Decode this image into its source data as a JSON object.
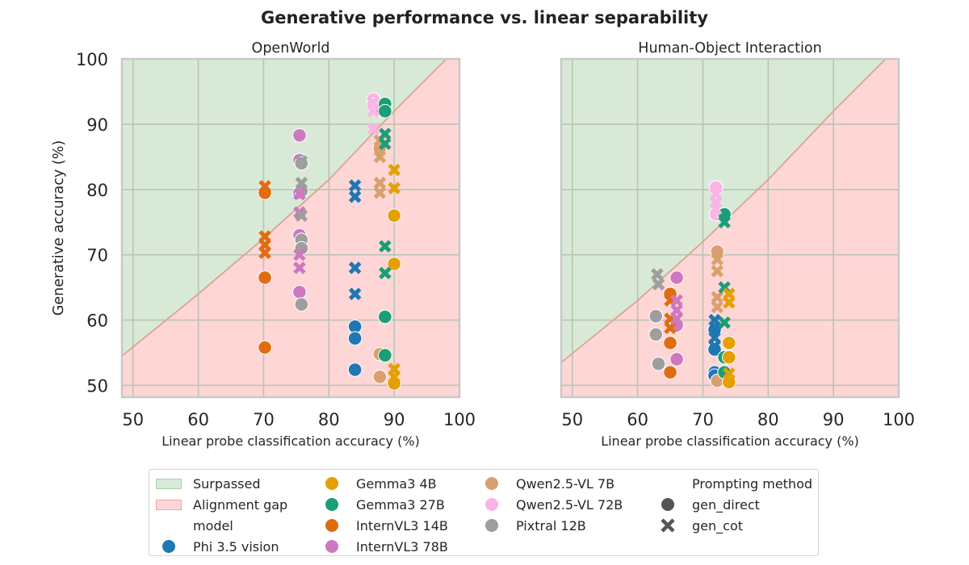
{
  "figure": {
    "title": "Generative performance vs. linear separability"
  },
  "chart_data": [
    {
      "type": "scatter",
      "title": "OpenWorld",
      "xlabel": "Linear probe classification accuracy (%)",
      "ylabel": "Generative accuracy (%)",
      "xlim": [
        48.3,
        100
      ],
      "ylim": [
        48.2,
        100
      ],
      "xticks": [
        50,
        60,
        70,
        80,
        90,
        100
      ],
      "yticks": [
        50,
        60,
        70,
        80,
        90,
        100
      ],
      "grid": true,
      "boundary": [
        [
          48.3,
          54.5
        ],
        [
          60,
          64
        ],
        [
          70,
          72.5
        ],
        [
          80,
          81.5
        ],
        [
          90,
          92
        ],
        [
          95,
          97
        ],
        [
          98,
          100
        ],
        [
          100,
          100.5
        ]
      ],
      "points": [
        {
          "model": "InternVL3 14B",
          "method": "gen_direct",
          "x": 70.2,
          "y": 79.5
        },
        {
          "model": "InternVL3 14B",
          "method": "gen_direct",
          "x": 70.2,
          "y": 66.5
        },
        {
          "model": "InternVL3 14B",
          "method": "gen_direct",
          "x": 70.2,
          "y": 55.8
        },
        {
          "model": "InternVL3 14B",
          "method": "gen_cot",
          "x": 70.2,
          "y": 80.5
        },
        {
          "model": "InternVL3 14B",
          "method": "gen_cot",
          "x": 70.2,
          "y": 72.8
        },
        {
          "model": "InternVL3 14B",
          "method": "gen_cot",
          "x": 70.2,
          "y": 71.5
        },
        {
          "model": "InternVL3 14B",
          "method": "gen_cot",
          "x": 70.2,
          "y": 70.3
        },
        {
          "model": "InternVL3 78B",
          "method": "gen_direct",
          "x": 75.5,
          "y": 88.3
        },
        {
          "model": "InternVL3 78B",
          "method": "gen_direct",
          "x": 75.5,
          "y": 84.5
        },
        {
          "model": "InternVL3 78B",
          "method": "gen_direct",
          "x": 75.5,
          "y": 79.5
        },
        {
          "model": "InternVL3 78B",
          "method": "gen_direct",
          "x": 75.5,
          "y": 73.0
        },
        {
          "model": "InternVL3 78B",
          "method": "gen_direct",
          "x": 75.5,
          "y": 64.3
        },
        {
          "model": "InternVL3 78B",
          "method": "gen_cot",
          "x": 75.5,
          "y": 79.3
        },
        {
          "model": "InternVL3 78B",
          "method": "gen_cot",
          "x": 75.5,
          "y": 76.5
        },
        {
          "model": "InternVL3 78B",
          "method": "gen_cot",
          "x": 75.5,
          "y": 70.0
        },
        {
          "model": "InternVL3 78B",
          "method": "gen_cot",
          "x": 75.5,
          "y": 68.0
        },
        {
          "model": "Pixtral 12B",
          "method": "gen_direct",
          "x": 75.8,
          "y": 84.0
        },
        {
          "model": "Pixtral 12B",
          "method": "gen_direct",
          "x": 75.8,
          "y": 79.8
        },
        {
          "model": "Pixtral 12B",
          "method": "gen_direct",
          "x": 75.8,
          "y": 72.3
        },
        {
          "model": "Pixtral 12B",
          "method": "gen_direct",
          "x": 75.8,
          "y": 71.0
        },
        {
          "model": "Pixtral 12B",
          "method": "gen_direct",
          "x": 75.8,
          "y": 62.4
        },
        {
          "model": "Pixtral 12B",
          "method": "gen_cot",
          "x": 75.8,
          "y": 84.3
        },
        {
          "model": "Pixtral 12B",
          "method": "gen_cot",
          "x": 75.8,
          "y": 81.0
        },
        {
          "model": "Pixtral 12B",
          "method": "gen_cot",
          "x": 75.8,
          "y": 76.0
        },
        {
          "model": "Phi 3.5 vision",
          "method": "gen_direct",
          "x": 84.0,
          "y": 59.0
        },
        {
          "model": "Phi 3.5 vision",
          "method": "gen_direct",
          "x": 84.0,
          "y": 57.2
        },
        {
          "model": "Phi 3.5 vision",
          "method": "gen_direct",
          "x": 84.0,
          "y": 52.4
        },
        {
          "model": "Phi 3.5 vision",
          "method": "gen_cot",
          "x": 84.0,
          "y": 80.6
        },
        {
          "model": "Phi 3.5 vision",
          "method": "gen_cot",
          "x": 84.0,
          "y": 78.9
        },
        {
          "model": "Phi 3.5 vision",
          "method": "gen_cot",
          "x": 84.0,
          "y": 68.0
        },
        {
          "model": "Phi 3.5 vision",
          "method": "gen_cot",
          "x": 84.0,
          "y": 64.0
        },
        {
          "model": "Qwen2.5-VL 72B",
          "method": "gen_direct",
          "x": 86.8,
          "y": 93.8
        },
        {
          "model": "Qwen2.5-VL 72B",
          "method": "gen_direct",
          "x": 86.8,
          "y": 93.0
        },
        {
          "model": "Qwen2.5-VL 72B",
          "method": "gen_cot",
          "x": 86.8,
          "y": 93.3
        },
        {
          "model": "Qwen2.5-VL 72B",
          "method": "gen_cot",
          "x": 86.8,
          "y": 92.0
        },
        {
          "model": "Qwen2.5-VL 72B",
          "method": "gen_cot",
          "x": 86.8,
          "y": 89.3
        },
        {
          "model": "Qwen2.5-VL 7B",
          "method": "gen_direct",
          "x": 87.8,
          "y": 92.3
        },
        {
          "model": "Qwen2.5-VL 7B",
          "method": "gen_direct",
          "x": 87.8,
          "y": 86.3
        },
        {
          "model": "Qwen2.5-VL 7B",
          "method": "gen_direct",
          "x": 87.8,
          "y": 54.8
        },
        {
          "model": "Qwen2.5-VL 7B",
          "method": "gen_direct",
          "x": 87.8,
          "y": 51.3
        },
        {
          "model": "Qwen2.5-VL 7B",
          "method": "gen_cot",
          "x": 87.8,
          "y": 87.5
        },
        {
          "model": "Qwen2.5-VL 7B",
          "method": "gen_cot",
          "x": 87.8,
          "y": 85.0
        },
        {
          "model": "Qwen2.5-VL 7B",
          "method": "gen_cot",
          "x": 87.8,
          "y": 81.0
        },
        {
          "model": "Qwen2.5-VL 7B",
          "method": "gen_cot",
          "x": 87.8,
          "y": 79.5
        },
        {
          "model": "Gemma3 27B",
          "method": "gen_direct",
          "x": 88.6,
          "y": 93.1
        },
        {
          "model": "Gemma3 27B",
          "method": "gen_direct",
          "x": 88.6,
          "y": 92.0
        },
        {
          "model": "Gemma3 27B",
          "method": "gen_direct",
          "x": 88.6,
          "y": 60.5
        },
        {
          "model": "Gemma3 27B",
          "method": "gen_direct",
          "x": 88.6,
          "y": 54.6
        },
        {
          "model": "Gemma3 27B",
          "method": "gen_cot",
          "x": 88.6,
          "y": 88.5
        },
        {
          "model": "Gemma3 27B",
          "method": "gen_cot",
          "x": 88.6,
          "y": 87.0
        },
        {
          "model": "Gemma3 27B",
          "method": "gen_cot",
          "x": 88.6,
          "y": 71.3
        },
        {
          "model": "Gemma3 27B",
          "method": "gen_cot",
          "x": 88.6,
          "y": 67.2
        },
        {
          "model": "Gemma3 4B",
          "method": "gen_direct",
          "x": 90.0,
          "y": 76.0
        },
        {
          "model": "Gemma3 4B",
          "method": "gen_direct",
          "x": 90.0,
          "y": 68.6
        },
        {
          "model": "Gemma3 4B",
          "method": "gen_direct",
          "x": 90.0,
          "y": 50.3
        },
        {
          "model": "Gemma3 4B",
          "method": "gen_cot",
          "x": 90.0,
          "y": 83.0
        },
        {
          "model": "Gemma3 4B",
          "method": "gen_cot",
          "x": 90.0,
          "y": 80.2
        },
        {
          "model": "Gemma3 4B",
          "method": "gen_cot",
          "x": 90.0,
          "y": 52.5
        },
        {
          "model": "Gemma3 4B",
          "method": "gen_cot",
          "x": 90.0,
          "y": 51.3
        }
      ]
    },
    {
      "type": "scatter",
      "title": "Human-Object Interaction",
      "xlabel": "Linear probe classification accuracy (%)",
      "ylabel": "",
      "xlim": [
        48.3,
        100
      ],
      "ylim": [
        48.2,
        100
      ],
      "xticks": [
        50,
        60,
        70,
        80,
        90,
        100
      ],
      "yticks": [
        50,
        60,
        70,
        80,
        90,
        100
      ],
      "grid": true,
      "boundary": [
        [
          48.3,
          53.5
        ],
        [
          60,
          63
        ],
        [
          70,
          72
        ],
        [
          80,
          81.5
        ],
        [
          90,
          92
        ],
        [
          95,
          97
        ],
        [
          98,
          100
        ],
        [
          100,
          100.5
        ]
      ],
      "points": [
        {
          "model": "Pixtral 12B",
          "method": "gen_direct",
          "x": 62.8,
          "y": 60.6
        },
        {
          "model": "Pixtral 12B",
          "method": "gen_direct",
          "x": 62.8,
          "y": 57.8
        },
        {
          "model": "Pixtral 12B",
          "method": "gen_direct",
          "x": 63.2,
          "y": 53.3
        },
        {
          "model": "Pixtral 12B",
          "method": "gen_cot",
          "x": 63.0,
          "y": 67.0
        },
        {
          "model": "Pixtral 12B",
          "method": "gen_cot",
          "x": 63.2,
          "y": 65.5
        },
        {
          "model": "InternVL3 14B",
          "method": "gen_direct",
          "x": 65.0,
          "y": 64.0
        },
        {
          "model": "InternVL3 14B",
          "method": "gen_direct",
          "x": 65.0,
          "y": 56.5
        },
        {
          "model": "InternVL3 14B",
          "method": "gen_direct",
          "x": 65.0,
          "y": 52.0
        },
        {
          "model": "InternVL3 14B",
          "method": "gen_cot",
          "x": 65.0,
          "y": 63.0
        },
        {
          "model": "InternVL3 14B",
          "method": "gen_cot",
          "x": 65.0,
          "y": 60.2
        },
        {
          "model": "InternVL3 14B",
          "method": "gen_cot",
          "x": 65.0,
          "y": 58.8
        },
        {
          "model": "InternVL3 78B",
          "method": "gen_direct",
          "x": 66.0,
          "y": 66.5
        },
        {
          "model": "InternVL3 78B",
          "method": "gen_direct",
          "x": 66.0,
          "y": 59.2
        },
        {
          "model": "InternVL3 78B",
          "method": "gen_direct",
          "x": 66.0,
          "y": 54.0
        },
        {
          "model": "InternVL3 78B",
          "method": "gen_cot",
          "x": 66.0,
          "y": 63.0
        },
        {
          "model": "InternVL3 78B",
          "method": "gen_cot",
          "x": 66.0,
          "y": 61.5
        },
        {
          "model": "InternVL3 78B",
          "method": "gen_cot",
          "x": 66.0,
          "y": 60.2
        },
        {
          "model": "Phi 3.5 vision",
          "method": "gen_direct",
          "x": 71.8,
          "y": 58.5
        },
        {
          "model": "Phi 3.5 vision",
          "method": "gen_direct",
          "x": 71.8,
          "y": 55.5
        },
        {
          "model": "Phi 3.5 vision",
          "method": "gen_direct",
          "x": 71.8,
          "y": 52.0
        },
        {
          "model": "Phi 3.5 vision",
          "method": "gen_direct",
          "x": 71.8,
          "y": 51.5
        },
        {
          "model": "Phi 3.5 vision",
          "method": "gen_cot",
          "x": 71.8,
          "y": 60.0
        },
        {
          "model": "Phi 3.5 vision",
          "method": "gen_cot",
          "x": 71.8,
          "y": 57.3
        },
        {
          "model": "Phi 3.5 vision",
          "method": "gen_cot",
          "x": 71.8,
          "y": 56.0
        },
        {
          "model": "Qwen2.5-VL 72B",
          "method": "gen_direct",
          "x": 72.0,
          "y": 80.3
        },
        {
          "model": "Qwen2.5-VL 72B",
          "method": "gen_direct",
          "x": 72.0,
          "y": 76.2
        },
        {
          "model": "Qwen2.5-VL 72B",
          "method": "gen_cot",
          "x": 72.0,
          "y": 79.3
        },
        {
          "model": "Qwen2.5-VL 72B",
          "method": "gen_cot",
          "x": 72.0,
          "y": 78.0
        },
        {
          "model": "Qwen2.5-VL 72B",
          "method": "gen_cot",
          "x": 72.0,
          "y": 77.0
        },
        {
          "model": "Qwen2.5-VL 7B",
          "method": "gen_direct",
          "x": 72.2,
          "y": 70.5
        },
        {
          "model": "Qwen2.5-VL 7B",
          "method": "gen_direct",
          "x": 72.2,
          "y": 50.7
        },
        {
          "model": "Qwen2.5-VL 7B",
          "method": "gen_cot",
          "x": 72.2,
          "y": 69.3
        },
        {
          "model": "Qwen2.5-VL 7B",
          "method": "gen_cot",
          "x": 72.2,
          "y": 67.5
        },
        {
          "model": "Qwen2.5-VL 7B",
          "method": "gen_cot",
          "x": 72.2,
          "y": 63.5
        },
        {
          "model": "Qwen2.5-VL 7B",
          "method": "gen_cot",
          "x": 72.2,
          "y": 62.0
        },
        {
          "model": "Gemma3 27B",
          "method": "gen_direct",
          "x": 73.3,
          "y": 76.2
        },
        {
          "model": "Gemma3 27B",
          "method": "gen_direct",
          "x": 73.3,
          "y": 54.3
        },
        {
          "model": "Gemma3 27B",
          "method": "gen_direct",
          "x": 73.3,
          "y": 52.0
        },
        {
          "model": "Gemma3 27B",
          "method": "gen_cot",
          "x": 73.3,
          "y": 75.0
        },
        {
          "model": "Gemma3 27B",
          "method": "gen_cot",
          "x": 73.3,
          "y": 65.0
        },
        {
          "model": "Gemma3 27B",
          "method": "gen_cot",
          "x": 73.3,
          "y": 59.6
        },
        {
          "model": "Gemma3 4B",
          "method": "gen_direct",
          "x": 74.0,
          "y": 56.5
        },
        {
          "model": "Gemma3 4B",
          "method": "gen_direct",
          "x": 74.0,
          "y": 54.3
        },
        {
          "model": "Gemma3 4B",
          "method": "gen_direct",
          "x": 74.0,
          "y": 50.5
        },
        {
          "model": "Gemma3 4B",
          "method": "gen_cot",
          "x": 74.0,
          "y": 64.0
        },
        {
          "model": "Gemma3 4B",
          "method": "gen_cot",
          "x": 74.0,
          "y": 62.7
        },
        {
          "model": "Gemma3 4B",
          "method": "gen_cot",
          "x": 74.0,
          "y": 51.8
        },
        {
          "model": "Gemma3 4B",
          "method": "gen_cot",
          "x": 74.0,
          "y": 50.8
        }
      ]
    }
  ],
  "colors": {
    "surpassed": "#d8ead7",
    "surpassed_edge": "#a9d3a5",
    "gap": "#ffd6d6",
    "gap_edge": "#f2a3a3",
    "boundary_line": "#d6a78f",
    "grid": "#b9c4b3",
    "spine": "#c8c8c8",
    "models": {
      "Phi 3.5 vision": "#1f77b4",
      "Gemma3 4B": "#e69f00",
      "Gemma3 27B": "#1a9e77",
      "InternVL3 14B": "#e06c10",
      "InternVL3 78B": "#cc79c0",
      "Qwen2.5-VL 7B": "#d9a06e",
      "Qwen2.5-VL 72B": "#fbb4e6",
      "Pixtral 12B": "#9e9e9e"
    },
    "method_marker": "#555555"
  },
  "legend": {
    "col1": {
      "surpassed": "Surpassed",
      "gap": "Alignment gap",
      "model_header": "model",
      "m1": "Phi 3.5 vision"
    },
    "col2": [
      "Gemma3 4B",
      "Gemma3 27B",
      "InternVL3 14B",
      "InternVL3 78B"
    ],
    "col3": [
      "Qwen2.5-VL 7B",
      "Qwen2.5-VL 72B",
      "Pixtral 12B"
    ],
    "col4": {
      "header": "Prompting method",
      "direct": "gen_direct",
      "cot": "gen_cot"
    }
  }
}
